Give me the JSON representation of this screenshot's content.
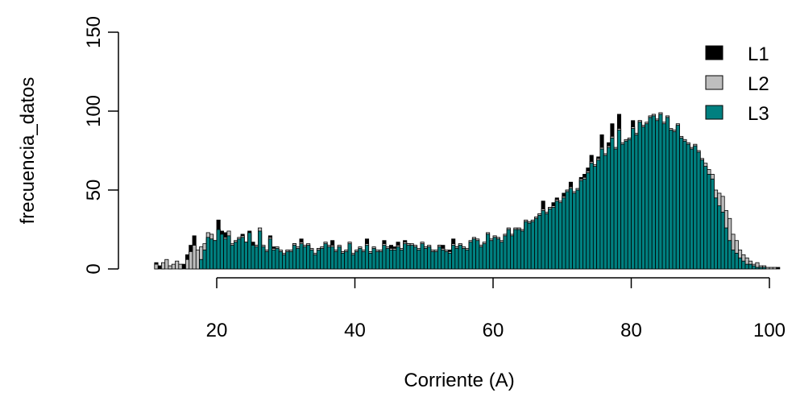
{
  "chart_data": {
    "type": "bar",
    "title": "",
    "xlabel": "Corriente (A)",
    "ylabel": "frecuencia_datos",
    "xlim": [
      10.5,
      103
    ],
    "ylim": [
      0,
      150
    ],
    "x_ticks": [
      "20",
      "40",
      "60",
      "80",
      "100"
    ],
    "y_ticks": [
      "0",
      "50",
      "100",
      "150"
    ],
    "bin_width": 0.5,
    "legend_position": "top-right",
    "series": [
      {
        "name": "L1",
        "color": "#000000",
        "x_start": 11,
        "values": [
          4,
          2,
          1,
          0,
          1,
          0,
          0,
          2,
          3,
          9,
          15,
          21,
          9,
          7,
          12,
          19,
          22,
          17,
          31,
          24,
          23,
          20,
          14,
          16,
          18,
          22,
          16,
          24,
          17,
          15,
          23,
          14,
          11,
          21,
          14,
          13,
          11,
          9,
          12,
          10,
          16,
          13,
          19,
          14,
          15,
          12,
          8,
          13,
          12,
          16,
          14,
          18,
          11,
          14,
          9,
          11,
          14,
          9,
          10,
          12,
          11,
          19,
          10,
          13,
          10,
          11,
          18,
          13,
          15,
          14,
          17,
          12,
          18,
          16,
          15,
          12,
          12,
          16,
          13,
          13,
          10,
          11,
          15,
          15,
          11,
          12,
          19,
          14,
          15,
          12,
          12,
          16,
          17,
          16,
          12,
          14,
          20,
          16,
          19,
          15,
          13,
          21,
          23,
          18,
          25,
          25,
          22,
          29,
          27,
          28,
          32,
          35,
          43,
          35,
          39,
          42,
          45,
          41,
          48,
          50,
          55,
          46,
          48,
          58,
          60,
          64,
          72,
          62,
          71,
          85,
          70,
          80,
          92,
          73,
          98,
          71,
          75,
          68,
          94,
          75,
          94,
          77,
          72,
          93,
          82,
          90,
          97,
          79,
          95,
          75,
          78,
          90,
          66,
          62,
          65,
          58,
          71,
          61,
          51,
          54,
          42,
          45,
          40,
          38,
          37,
          25,
          20,
          14,
          12,
          8,
          6,
          4,
          3,
          2,
          2,
          1,
          1,
          0,
          0,
          0,
          1
        ]
      },
      {
        "name": "L2",
        "color": "#bebebe",
        "x_start": 11,
        "values": [
          3,
          0,
          4,
          6,
          2,
          3,
          5,
          3,
          0,
          6,
          11,
          15,
          12,
          14,
          16,
          23,
          22,
          18,
          25,
          21,
          20,
          24,
          16,
          18,
          20,
          21,
          17,
          22,
          14,
          15,
          26,
          15,
          12,
          20,
          13,
          14,
          12,
          10,
          12,
          12,
          16,
          14,
          17,
          15,
          16,
          13,
          10,
          13,
          14,
          17,
          15,
          15,
          12,
          15,
          11,
          12,
          17,
          10,
          12,
          14,
          12,
          16,
          11,
          14,
          12,
          12,
          16,
          14,
          13,
          13,
          15,
          13,
          17,
          16,
          16,
          15,
          13,
          17,
          14,
          15,
          12,
          12,
          15,
          13,
          12,
          11,
          16,
          14,
          16,
          14,
          13,
          18,
          20,
          19,
          15,
          17,
          23,
          19,
          21,
          20,
          18,
          22,
          26,
          22,
          26,
          26,
          25,
          31,
          30,
          31,
          33,
          35,
          38,
          36,
          39,
          40,
          44,
          43,
          46,
          50,
          52,
          49,
          51,
          57,
          58,
          62,
          68,
          66,
          70,
          77,
          73,
          78,
          84,
          77,
          89,
          80,
          82,
          83,
          90,
          86,
          94,
          91,
          93,
          97,
          98,
          95,
          99,
          93,
          97,
          89,
          88,
          92,
          84,
          82,
          80,
          77,
          79,
          75,
          70,
          67,
          63,
          60,
          50,
          48,
          46,
          37,
          32,
          22,
          18,
          12,
          9,
          7,
          5,
          3,
          4,
          2,
          2,
          1,
          1,
          1
        ]
      },
      {
        "name": "L3",
        "color": "#008080",
        "x_start": 11,
        "values": [
          0,
          0,
          0,
          0,
          0,
          0,
          0,
          0,
          0,
          0,
          0,
          0,
          0,
          6,
          12,
          20,
          19,
          18,
          25,
          22,
          19,
          21,
          15,
          17,
          19,
          20,
          17,
          23,
          15,
          14,
          24,
          14,
          11,
          19,
          12,
          13,
          11,
          9,
          11,
          11,
          15,
          13,
          16,
          14,
          15,
          12,
          9,
          12,
          13,
          16,
          14,
          14,
          11,
          14,
          10,
          11,
          16,
          9,
          11,
          13,
          11,
          15,
          10,
          13,
          11,
          11,
          15,
          13,
          12,
          12,
          14,
          12,
          16,
          15,
          15,
          14,
          12,
          16,
          13,
          14,
          11,
          11,
          14,
          12,
          11,
          10,
          15,
          13,
          15,
          13,
          12,
          17,
          19,
          18,
          14,
          16,
          22,
          18,
          20,
          19,
          17,
          21,
          25,
          21,
          25,
          25,
          24,
          30,
          29,
          30,
          32,
          34,
          37,
          35,
          38,
          39,
          43,
          42,
          45,
          49,
          51,
          48,
          50,
          56,
          57,
          61,
          67,
          65,
          69,
          76,
          72,
          77,
          83,
          76,
          88,
          79,
          81,
          82,
          89,
          85,
          93,
          90,
          92,
          96,
          97,
          94,
          98,
          92,
          96,
          88,
          87,
          91,
          83,
          81,
          79,
          76,
          78,
          74,
          69,
          65,
          60,
          57,
          45,
          40,
          36,
          26,
          18,
          12,
          10,
          7,
          5,
          3,
          3,
          2,
          1,
          1,
          1,
          0,
          0,
          0
        ]
      }
    ]
  }
}
